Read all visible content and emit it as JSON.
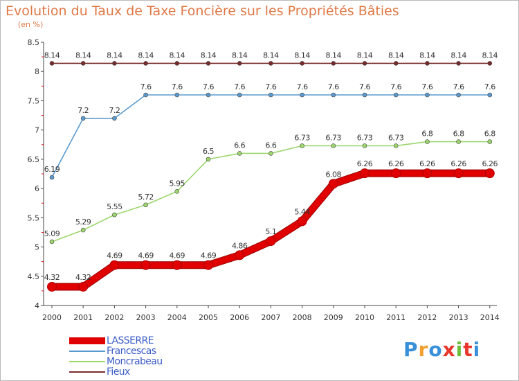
{
  "title": "Evolution du Taux de Taxe Foncière sur les Propriétés Bâties",
  "unit": "(en %)",
  "logo": {
    "text": "Proxiti",
    "colors": [
      "#3a8fd9",
      "#f0a030",
      "#3a8fd9",
      "#e8362b",
      "#6cbf3a",
      "#e8362b",
      "#3a8fd9"
    ]
  },
  "chart_data": {
    "type": "line",
    "title": "Evolution du Taux de Taxe Foncière sur les Propriétés Bâties",
    "ylabel": "(en %)",
    "ylim": [
      4,
      8.5
    ],
    "yticks": [
      "4",
      "4.5",
      "5",
      "5.5",
      "6",
      "6.5",
      "7",
      "7.5",
      "8",
      "8.5"
    ],
    "x": [
      "2000",
      "2001",
      "2002",
      "2003",
      "2004",
      "2005",
      "2006",
      "2007",
      "2008",
      "2009",
      "2010",
      "2011",
      "2012",
      "2013",
      "2014"
    ],
    "grid": false,
    "legend_position": "bottom-left",
    "series": [
      {
        "name": "LASSERRE",
        "color": "#e00000",
        "values": [
          4.32,
          4.32,
          4.69,
          4.69,
          4.69,
          4.69,
          4.86,
          5.1,
          5.44,
          6.08,
          6.26,
          6.26,
          6.26,
          6.26,
          6.26
        ],
        "labels": [
          "4.32",
          "4.32",
          "4.69",
          "4.69",
          "4.69",
          "4.69",
          "4.86",
          "5.1",
          "5.44",
          "6.08",
          "6.26",
          "6.26",
          "6.26",
          "6.26",
          "6.26"
        ]
      },
      {
        "name": "Francescas",
        "color": "#5a9acf",
        "values": [
          6.19,
          7.2,
          7.2,
          7.6,
          7.6,
          7.6,
          7.6,
          7.6,
          7.6,
          7.6,
          7.6,
          7.6,
          7.6,
          7.6,
          7.6
        ],
        "labels": [
          "6.19",
          "7.2",
          "7.2",
          "7.6",
          "7.6",
          "7.6",
          "7.6",
          "7.6",
          "7.6",
          "7.6",
          "7.6",
          "7.6",
          "7.6",
          "7.6",
          "7.6"
        ]
      },
      {
        "name": "Moncrabeau",
        "color": "#9cd66c",
        "values": [
          5.09,
          5.29,
          5.55,
          5.72,
          5.95,
          6.5,
          6.6,
          6.6,
          6.73,
          6.73,
          6.73,
          6.73,
          6.8,
          6.8,
          6.8
        ],
        "labels": [
          "5.09",
          "5.29",
          "5.55",
          "5.72",
          "5.95",
          "6.5",
          "6.6",
          "6.6",
          "6.73",
          "6.73",
          "6.73",
          "6.73",
          "6.8",
          "6.8",
          "6.8"
        ]
      },
      {
        "name": "Fieux",
        "color": "#7a2a2a",
        "values": [
          8.14,
          8.14,
          8.14,
          8.14,
          8.14,
          8.14,
          8.14,
          8.14,
          8.14,
          8.14,
          8.14,
          8.14,
          8.14,
          8.14,
          8.14
        ],
        "labels": [
          "8.14",
          "8.14",
          "8.14",
          "8.14",
          "8.14",
          "8.14",
          "8.14",
          "8.14",
          "8.14",
          "8.14",
          "8.14",
          "8.14",
          "8.14",
          "8.14",
          "8.14"
        ]
      }
    ]
  }
}
